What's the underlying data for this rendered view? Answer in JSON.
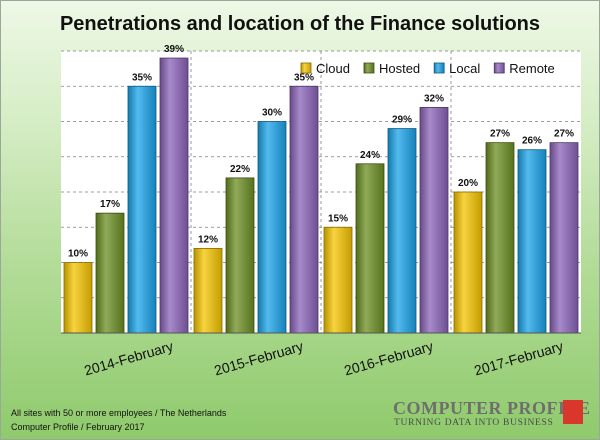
{
  "chart_data": {
    "type": "bar",
    "title": "Penetrations and location of the Finance solutions",
    "categories": [
      "2014-February",
      "2015-February",
      "2016-February",
      "2017-February"
    ],
    "series": [
      {
        "name": "Cloud",
        "values": [
          10,
          12,
          15,
          20
        ],
        "color": "#f5c400"
      },
      {
        "name": "Hosted",
        "values": [
          17,
          22,
          24,
          27
        ],
        "color": "#6b8e23"
      },
      {
        "name": "Local",
        "values": [
          35,
          30,
          29,
          26
        ],
        "color": "#1aa3e8"
      },
      {
        "name": "Remote",
        "values": [
          39,
          35,
          32,
          27
        ],
        "color": "#8a63b8"
      }
    ],
    "value_suffix": "%",
    "ylim": [
      0,
      40
    ],
    "grid": true,
    "legend_position": "top-right"
  },
  "footnotes": [
    "All sites with 50 or more employees / The Netherlands",
    "Computer Profile / February 2017"
  ],
  "logo": {
    "name": "COMPUTER PROFILE",
    "tagline": "TURNING DATA INTO BUSINESS"
  }
}
